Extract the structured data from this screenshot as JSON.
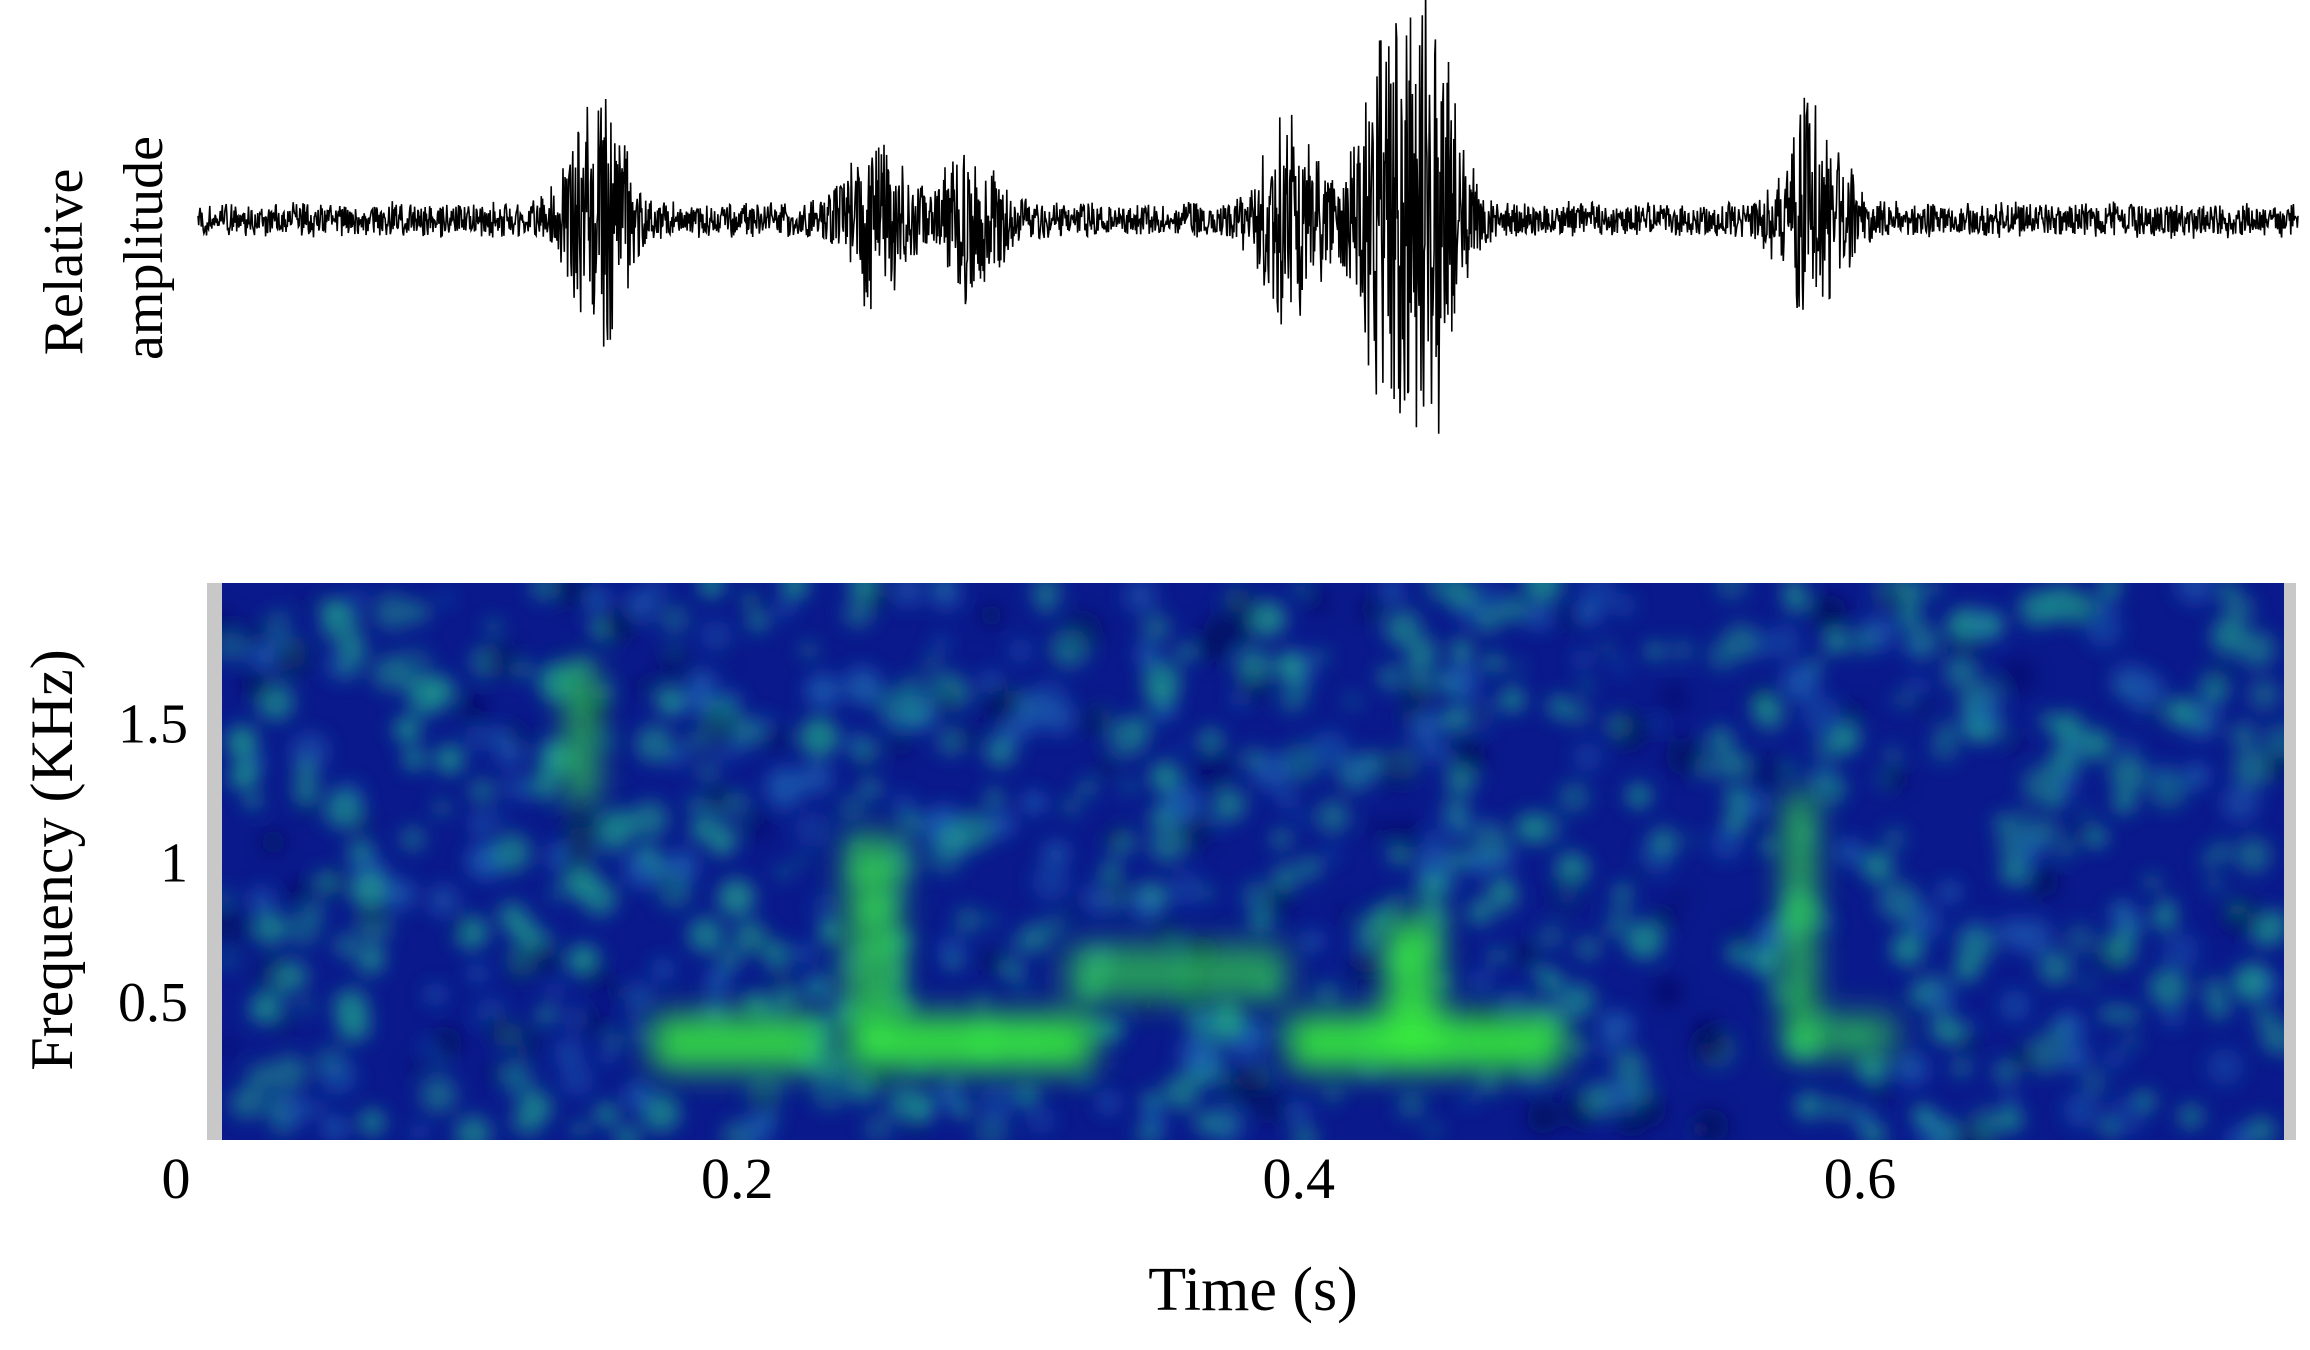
{
  "figure": {
    "waveform_ylabel_line1": "Relative",
    "waveform_ylabel_line2": "amplitude",
    "spectrogram_ylabel": "Frequency (KHz)",
    "xlabel": "Time (s)"
  },
  "colors": {
    "waveform_line": "#000000",
    "spec_low": "#0a1a8c",
    "spec_mid": "#1e9c8c",
    "spec_high": "#39f03c",
    "spec_edge": "#c8c8c8"
  },
  "chart_data": [
    {
      "type": "line",
      "title": "",
      "xlabel": "",
      "ylabel": "Relative amplitude",
      "xlim": [
        0,
        0.76
      ],
      "ylim": [
        -1,
        1
      ],
      "grid": false,
      "events": [
        {
          "t": 0.145,
          "amplitude": 0.55
        },
        {
          "t": 0.245,
          "amplitude": 0.35
        },
        {
          "t": 0.28,
          "amplitude": 0.3
        },
        {
          "t": 0.395,
          "amplitude": 0.45
        },
        {
          "t": 0.43,
          "amplitude": 0.8
        },
        {
          "t": 0.445,
          "amplitude": 1.0
        },
        {
          "t": 0.585,
          "amplitude": 0.5
        }
      ],
      "baseline_noise": 0.08
    },
    {
      "type": "heatmap",
      "title": "",
      "xlabel": "Time (s)",
      "ylabel": "Frequency (KHz)",
      "xlim": [
        0.015,
        0.76
      ],
      "ylim": [
        0,
        2.0
      ],
      "xticks": [
        "0",
        "0.2",
        "0.4",
        "0.6"
      ],
      "xtick_values": [
        0,
        0.2,
        0.4,
        0.6
      ],
      "yticks": [
        "0.5",
        "1",
        "1.5"
      ],
      "ytick_values": [
        0.5,
        1.0,
        1.5
      ],
      "grid": false,
      "features": [
        {
          "t_start": 0.14,
          "t_end": 0.15,
          "f_low": 1.2,
          "f_high": 1.7,
          "intensity": 0.75
        },
        {
          "t_start": 0.17,
          "t_end": 0.23,
          "f_low": 0.25,
          "f_high": 0.45,
          "intensity": 0.85
        },
        {
          "t_start": 0.24,
          "t_end": 0.33,
          "f_low": 0.25,
          "f_high": 0.45,
          "intensity": 0.9
        },
        {
          "t_start": 0.24,
          "t_end": 0.26,
          "f_low": 0.45,
          "f_high": 1.1,
          "intensity": 0.65
        },
        {
          "t_start": 0.32,
          "t_end": 0.4,
          "f_low": 0.5,
          "f_high": 0.7,
          "intensity": 0.6
        },
        {
          "t_start": 0.4,
          "t_end": 0.5,
          "f_low": 0.25,
          "f_high": 0.45,
          "intensity": 0.9
        },
        {
          "t_start": 0.435,
          "t_end": 0.455,
          "f_low": 0.25,
          "f_high": 0.8,
          "intensity": 0.85
        },
        {
          "t_start": 0.58,
          "t_end": 0.59,
          "f_low": 0.3,
          "f_high": 1.25,
          "intensity": 0.8
        },
        {
          "t_start": 0.59,
          "t_end": 0.62,
          "f_low": 0.3,
          "f_high": 0.45,
          "intensity": 0.6
        }
      ]
    }
  ]
}
